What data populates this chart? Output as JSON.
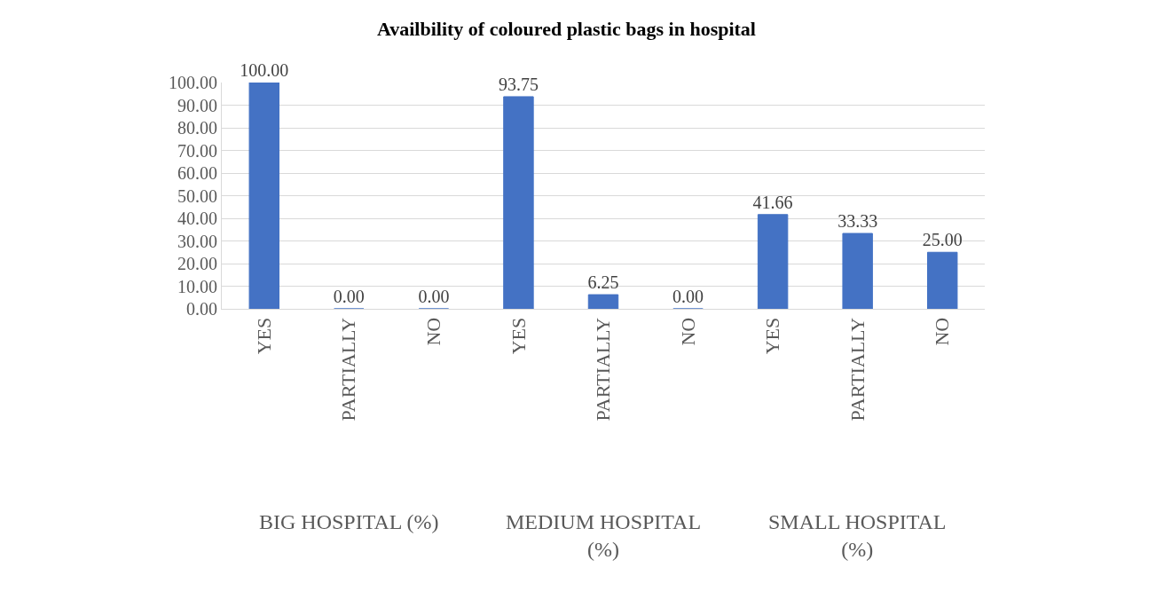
{
  "chart_data": {
    "type": "bar",
    "title": "Availbility of coloured plastic bags in hospital",
    "categories": [
      "YES",
      "PARTIALLY",
      "NO",
      "YES",
      "PARTIALLY",
      "NO",
      "YES",
      "PARTIALLY",
      "NO"
    ],
    "values": [
      100,
      0,
      0,
      93.75,
      6.25,
      0,
      41.66,
      33.33,
      25
    ],
    "value_labels": [
      "100.00",
      "0.00",
      "0.00",
      "93.75",
      "6.25",
      "0.00",
      "41.66",
      "33.33",
      "25.00"
    ],
    "color": "#4472c4",
    "annotations": [
      "BIG HOSPITAL (%)",
      "MEDIUM HOSPITAL (%)",
      "SMALL HOSPITAL (%)"
    ],
    "ylim": [
      0,
      100
    ],
    "yticks": [
      {
        "value": 0,
        "label": "0.00"
      },
      {
        "value": 10,
        "label": "10.00"
      },
      {
        "value": 20,
        "label": "20.00"
      },
      {
        "value": 30,
        "label": "30.00"
      },
      {
        "value": 40,
        "label": "40.00"
      },
      {
        "value": 50,
        "label": "50.00"
      },
      {
        "value": 60,
        "label": "60.00"
      },
      {
        "value": 70,
        "label": "70.00"
      },
      {
        "value": 80,
        "label": "80.00"
      },
      {
        "value": 90,
        "label": "90.00"
      },
      {
        "value": 100,
        "label": "100.00"
      }
    ],
    "grid": "y",
    "legend": false
  }
}
